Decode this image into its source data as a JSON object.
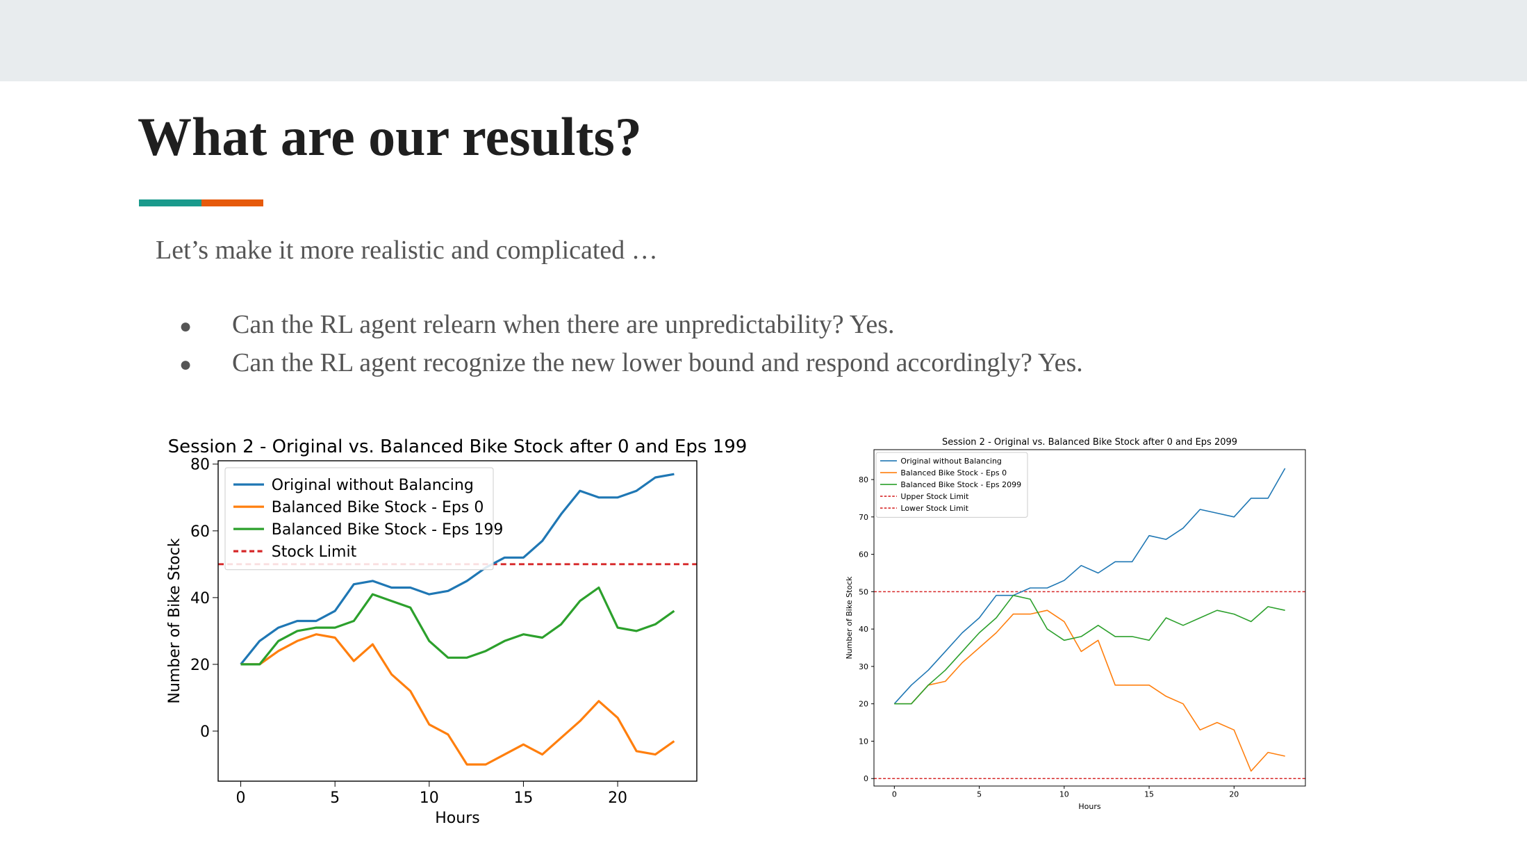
{
  "slide": {
    "title": "What are our results?",
    "subtitle": "Let’s make it more realistic and complicated …",
    "bullets": [
      "Can the RL agent relearn when there are unpredictability? Yes.",
      "Can the RL agent recognize the new lower bound and respond accordingly? Yes."
    ],
    "colors": {
      "band": "#e8ecee",
      "accent_teal": "#1a9a8c",
      "accent_orange": "#e65a0c"
    }
  },
  "chart_data": [
    {
      "type": "line",
      "title": "Session 2 - Original vs. Balanced Bike Stock after 0 and Eps 199",
      "xlabel": "Hours",
      "ylabel": "Number of Bike Stock",
      "xlim": [
        -1.2,
        24.2
      ],
      "ylim": [
        -15,
        81
      ],
      "xticks": [
        0,
        5,
        10,
        15,
        20
      ],
      "yticks": [
        0,
        20,
        40,
        60,
        80
      ],
      "legend_loc": "upper-left",
      "grid": false,
      "x": [
        0,
        1,
        2,
        3,
        4,
        5,
        6,
        7,
        8,
        9,
        10,
        11,
        12,
        13,
        14,
        15,
        16,
        17,
        18,
        19,
        20,
        21,
        22,
        23
      ],
      "series": [
        {
          "name": "Original without Balancing",
          "color": "#1f77b4",
          "values": [
            20,
            27,
            31,
            33,
            33,
            36,
            44,
            45,
            43,
            43,
            41,
            42,
            45,
            49,
            52,
            52,
            57,
            65,
            72,
            70,
            70,
            72,
            76,
            77
          ]
        },
        {
          "name": "Balanced Bike Stock - Eps 0",
          "color": "#ff7f0e",
          "values": [
            20,
            20,
            24,
            27,
            29,
            28,
            21,
            26,
            17,
            12,
            2,
            -1,
            -10,
            -10,
            -7,
            -4,
            -7,
            -2,
            3,
            9,
            4,
            -6,
            -7,
            -3
          ]
        },
        {
          "name": "Balanced Bike Stock - Eps 199",
          "color": "#2ca02c",
          "values": [
            20,
            20,
            27,
            30,
            31,
            31,
            33,
            41,
            39,
            37,
            27,
            22,
            22,
            24,
            27,
            29,
            28,
            32,
            39,
            43,
            31,
            30,
            32,
            36
          ]
        }
      ],
      "hlines": [
        {
          "name": "Stock Limit",
          "y": 50,
          "color": "#d62728",
          "dashed": true
        }
      ]
    },
    {
      "type": "line",
      "title": "Session 2 - Original vs. Balanced Bike Stock after 0 and Eps 2099",
      "xlabel": "Hours",
      "ylabel": "Number of Bike Stock",
      "xlim": [
        -1.2,
        24.2
      ],
      "ylim": [
        -2,
        88
      ],
      "xticks": [
        0,
        5,
        10,
        15,
        20
      ],
      "yticks": [
        0,
        10,
        20,
        30,
        40,
        50,
        60,
        70,
        80
      ],
      "legend_loc": "upper-left",
      "grid": false,
      "x": [
        0,
        1,
        2,
        3,
        4,
        5,
        6,
        7,
        8,
        9,
        10,
        11,
        12,
        13,
        14,
        15,
        16,
        17,
        18,
        19,
        20,
        21,
        22,
        23
      ],
      "series": [
        {
          "name": "Original without Balancing",
          "color": "#1f77b4",
          "values": [
            20,
            25,
            29,
            34,
            39,
            43,
            49,
            49,
            51,
            51,
            53,
            57,
            55,
            58,
            58,
            65,
            64,
            67,
            72,
            71,
            70,
            75,
            75,
            83
          ]
        },
        {
          "name": "Balanced Bike Stock - Eps 0",
          "color": "#ff7f0e",
          "values": [
            20,
            20,
            25,
            26,
            31,
            35,
            39,
            44,
            44,
            45,
            42,
            34,
            37,
            25,
            25,
            25,
            22,
            20,
            13,
            15,
            13,
            2,
            7,
            6
          ]
        },
        {
          "name": "Balanced Bike Stock - Eps 2099",
          "color": "#2ca02c",
          "values": [
            20,
            20,
            25,
            29,
            34,
            39,
            43,
            49,
            48,
            40,
            37,
            38,
            41,
            38,
            38,
            37,
            43,
            41,
            43,
            45,
            44,
            42,
            46,
            45
          ]
        }
      ],
      "hlines": [
        {
          "name": "Upper Stock Limit",
          "y": 50,
          "color": "#d62728",
          "dashed": true
        },
        {
          "name": "Lower Stock Limit",
          "y": 0,
          "color": "#d62728",
          "dashed": true
        }
      ]
    }
  ]
}
